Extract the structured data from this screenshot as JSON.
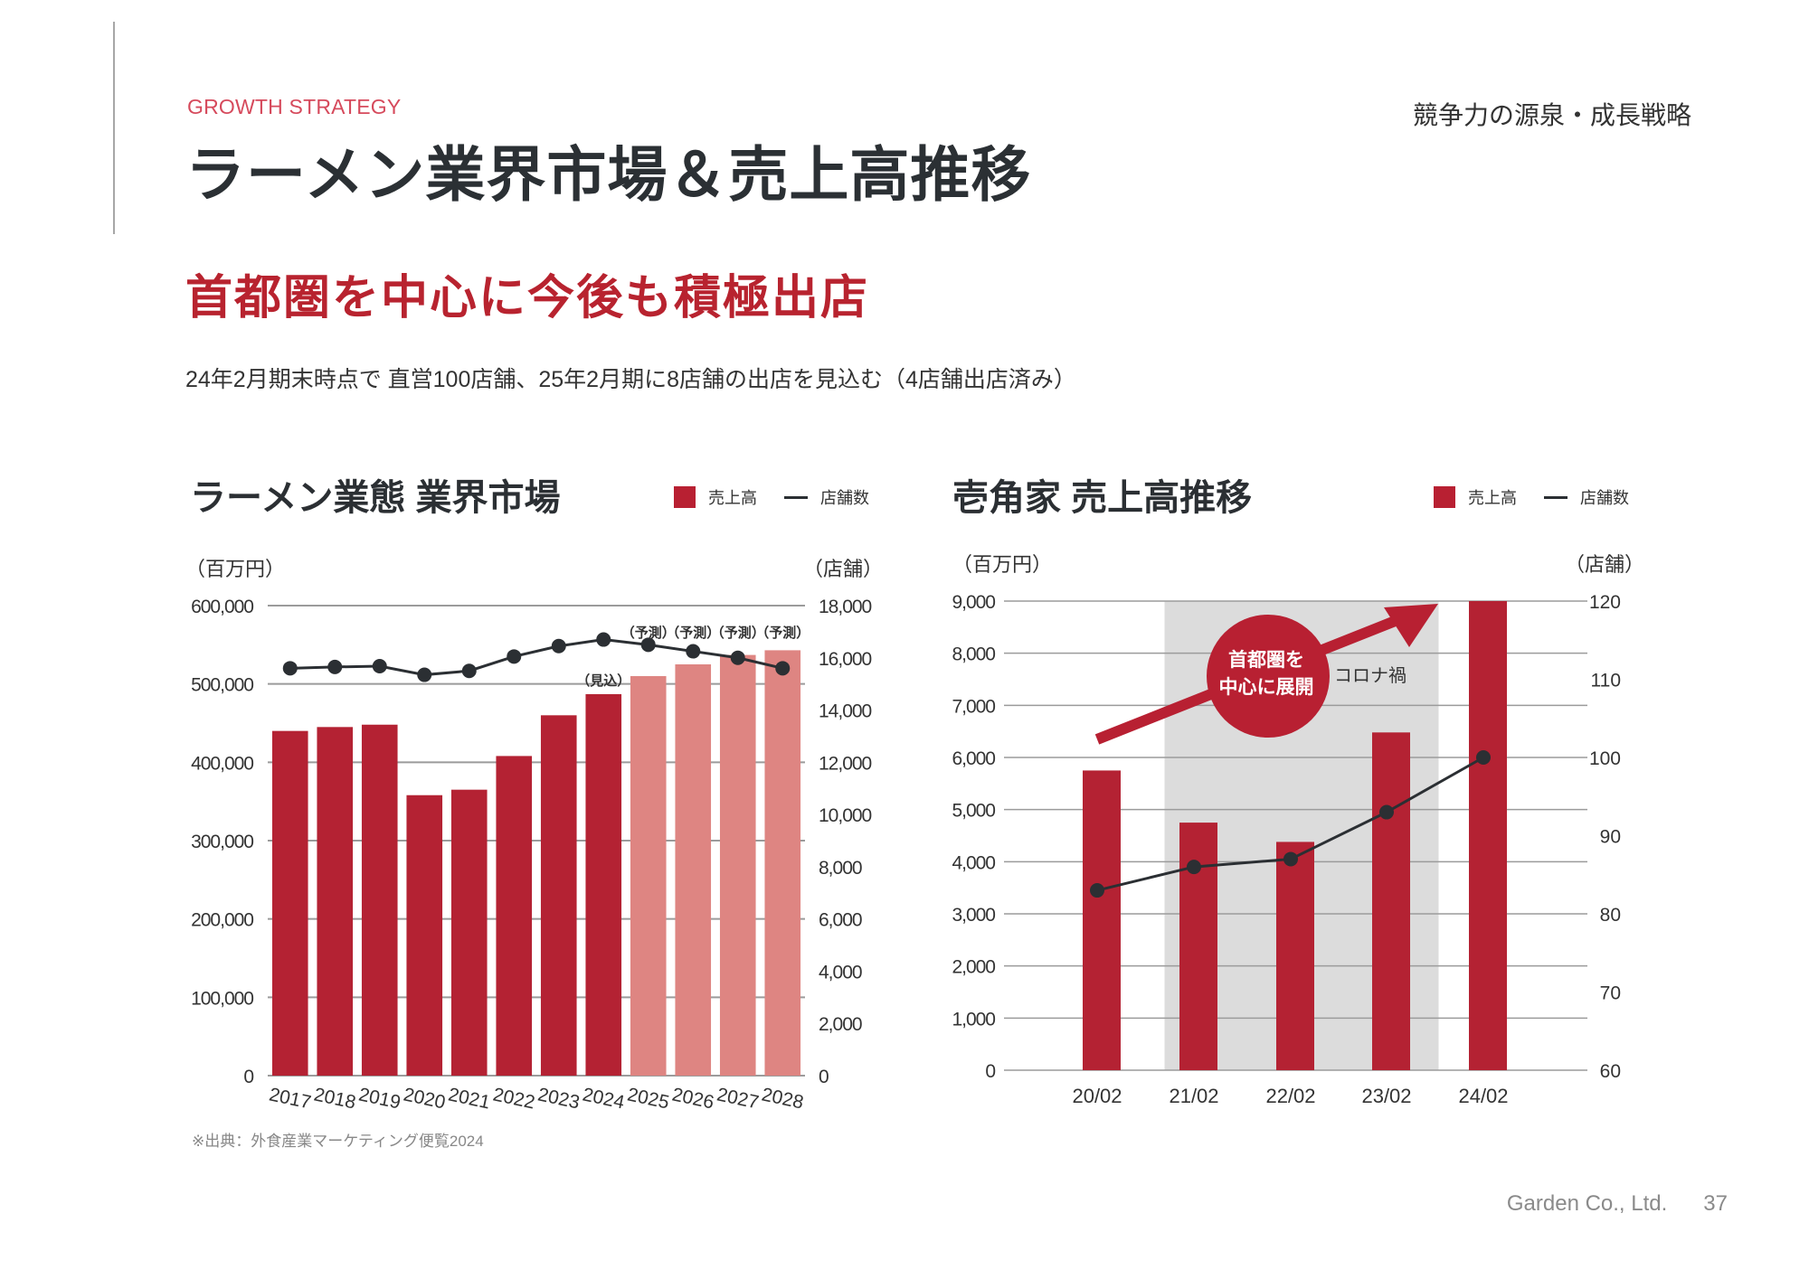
{
  "header": {
    "kicker": "GROWTH STRATEGY",
    "title": "ラーメン業界市場＆売上高推移",
    "section": "競争力の源泉・成長戦略"
  },
  "subtitle": "首都圏を中心に今後も積極出店",
  "description": "24年2月期末時点で  直営100店舗、25年2月期に8店舗の出店を見込む（4店舗出店済み）",
  "colors": {
    "accent": "#b82032",
    "bar_actual": "#b42233",
    "bar_forecast": "#de8582",
    "line": "#2b2f33",
    "shade": "#dcdcdc",
    "kicker": "#d64a5c"
  },
  "chart_data": [
    {
      "type": "bar+line",
      "title": "ラーメン業態 業界市場",
      "legend": {
        "bar": "売上高",
        "line": "店舗数",
        "placement": "top-right"
      },
      "ylabel_left": "（百万円）",
      "ylabel_right": "（店舗）",
      "categories": [
        "2017",
        "2018",
        "2019",
        "2020",
        "2021",
        "2022",
        "2023",
        "2024",
        "2025",
        "2026",
        "2027",
        "2028"
      ],
      "bar_series": {
        "name": "売上高",
        "values": [
          440000,
          445000,
          448000,
          358000,
          365000,
          408000,
          460000,
          487000,
          510000,
          525000,
          537000,
          543000
        ]
      },
      "line_series": {
        "name": "店舗数",
        "values": [
          15600,
          15650,
          15680,
          15350,
          15500,
          16050,
          16450,
          16700,
          16500,
          16250,
          16000,
          15600
        ]
      },
      "bar_status": [
        "actual",
        "actual",
        "actual",
        "actual",
        "actual",
        "actual",
        "actual",
        "estimate",
        "forecast",
        "forecast",
        "forecast",
        "forecast"
      ],
      "bar_annotations": [
        "",
        "",
        "",
        "",
        "",
        "",
        "",
        "（見込）",
        "（予測）",
        "（予測）",
        "（予測）",
        "（予測）"
      ],
      "ylim_left": [
        0,
        600000
      ],
      "yticks_left": [
        "0",
        "100,000",
        "200,000",
        "300,000",
        "400,000",
        "500,000",
        "600,000"
      ],
      "ylim_right": [
        0,
        18000
      ],
      "yticks_right": [
        "0",
        "2,000",
        "4,000",
        "6,000",
        "8,000",
        "10,000",
        "12,000",
        "14,000",
        "16,000",
        "18,000"
      ],
      "grid": true,
      "source": "※出典：外食産業マーケティング便覧2024"
    },
    {
      "type": "bar+line",
      "title": "壱角家 売上高推移",
      "legend": {
        "bar": "売上高",
        "line": "店舗数",
        "placement": "top-right"
      },
      "ylabel_left": "（百万円）",
      "ylabel_right": "（店舗）",
      "categories": [
        "20/02",
        "21/02",
        "22/02",
        "23/02",
        "24/02"
      ],
      "bar_series": {
        "name": "売上高",
        "values": [
          5750,
          4750,
          4380,
          6480,
          9000
        ]
      },
      "line_series": {
        "name": "店舗数",
        "values": [
          83,
          86,
          87,
          93,
          100
        ]
      },
      "ylim_left": [
        0,
        9000
      ],
      "yticks_left": [
        "0",
        "1,000",
        "2,000",
        "3,000",
        "4,000",
        "5,000",
        "6,000",
        "7,000",
        "8,000",
        "9,000"
      ],
      "ylim_right": [
        60,
        120
      ],
      "yticks_right": [
        "60",
        "70",
        "80",
        "90",
        "100",
        "110",
        "120"
      ],
      "grid": true,
      "shaded_period": {
        "from": "21/02",
        "to": "23/02",
        "label": "コロナ禍"
      },
      "callout": {
        "line1": "首都圏を",
        "line2": "中心に展開"
      }
    }
  ],
  "footer": {
    "company": "Garden Co., Ltd.",
    "page": "37"
  }
}
